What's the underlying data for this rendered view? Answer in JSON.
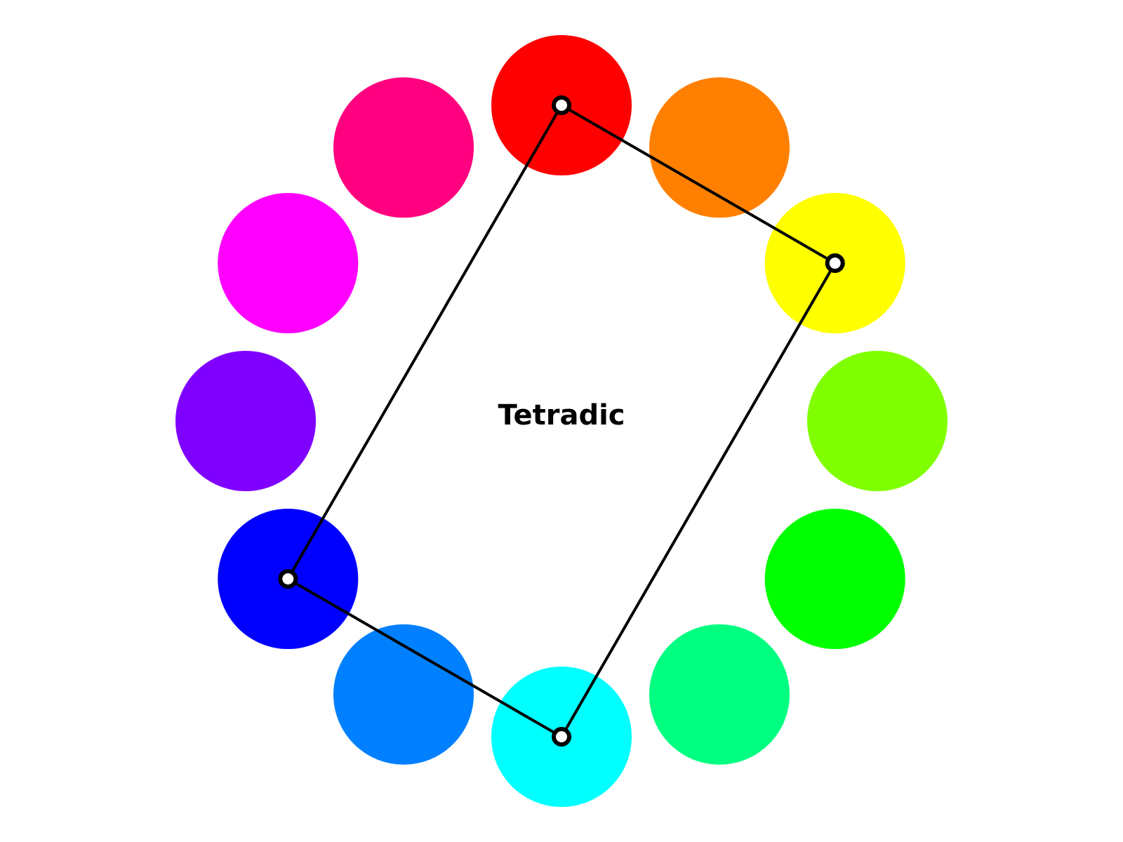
{
  "diagram": {
    "title": "Tetradic",
    "background": "#ffffff",
    "line_color": "#000000",
    "marker_fill": "#ffffff",
    "marker_stroke": "#000000",
    "hues": [
      {
        "name": "red",
        "color": "#ff0000"
      },
      {
        "name": "orange",
        "color": "#ff8000"
      },
      {
        "name": "yellow",
        "color": "#ffff00"
      },
      {
        "name": "chartreuse",
        "color": "#80ff00"
      },
      {
        "name": "green",
        "color": "#00ff00"
      },
      {
        "name": "spring-green",
        "color": "#00ff80"
      },
      {
        "name": "cyan",
        "color": "#00ffff"
      },
      {
        "name": "azure",
        "color": "#0080ff"
      },
      {
        "name": "blue",
        "color": "#0000ff"
      },
      {
        "name": "violet",
        "color": "#8000ff"
      },
      {
        "name": "magenta",
        "color": "#ff00ff"
      },
      {
        "name": "rose",
        "color": "#ff0080"
      }
    ],
    "selected_hues": [
      "red",
      "yellow",
      "cyan",
      "blue"
    ]
  }
}
